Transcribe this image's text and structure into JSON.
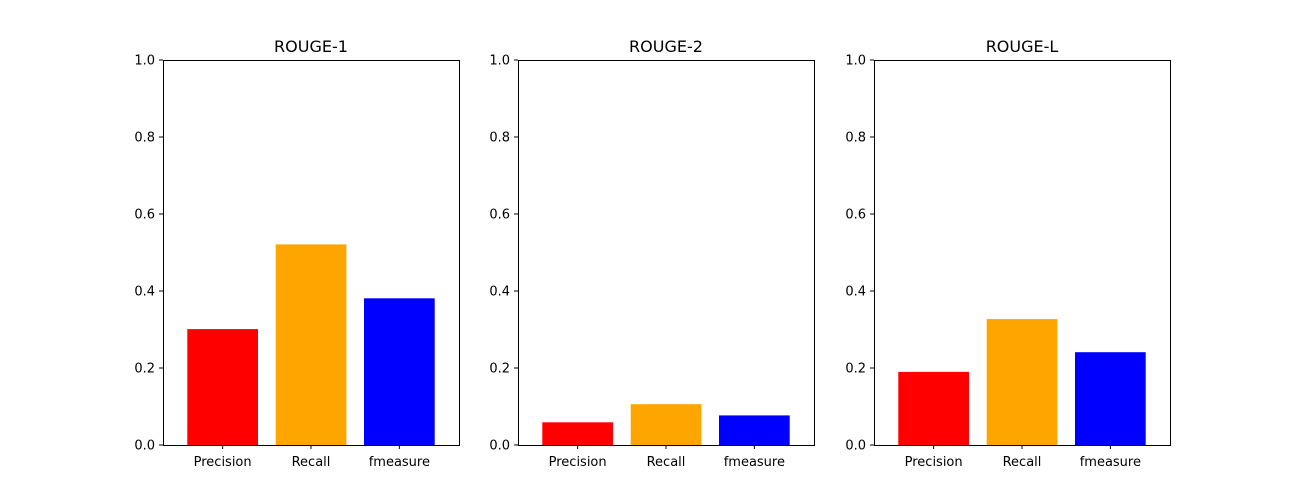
{
  "chart_data": [
    {
      "type": "bar",
      "title": "ROUGE-1",
      "categories": [
        "Precision",
        "Recall",
        "fmeasure"
      ],
      "values": [
        0.301,
        0.521,
        0.381
      ],
      "colors": [
        "#ff0000",
        "#ffa500",
        "#0000ff"
      ],
      "ylim": [
        0,
        1.0
      ],
      "yticks": [
        "0.0",
        "0.2",
        "0.4",
        "0.6",
        "0.8",
        "1.0"
      ],
      "xlabel": "",
      "ylabel": "",
      "grid": false
    },
    {
      "type": "bar",
      "title": "ROUGE-2",
      "categories": [
        "Precision",
        "Recall",
        "fmeasure"
      ],
      "values": [
        0.059,
        0.106,
        0.077
      ],
      "colors": [
        "#ff0000",
        "#ffa500",
        "#0000ff"
      ],
      "ylim": [
        0,
        1.0
      ],
      "yticks": [
        "0.0",
        "0.2",
        "0.4",
        "0.6",
        "0.8",
        "1.0"
      ],
      "xlabel": "",
      "ylabel": "",
      "grid": false
    },
    {
      "type": "bar",
      "title": "ROUGE-L",
      "categories": [
        "Precision",
        "Recall",
        "fmeasure"
      ],
      "values": [
        0.19,
        0.327,
        0.241
      ],
      "colors": [
        "#ff0000",
        "#ffa500",
        "#0000ff"
      ],
      "ylim": [
        0,
        1.0
      ],
      "yticks": [
        "0.0",
        "0.2",
        "0.4",
        "0.6",
        "0.8",
        "1.0"
      ],
      "xlabel": "",
      "ylabel": "",
      "grid": false
    }
  ]
}
